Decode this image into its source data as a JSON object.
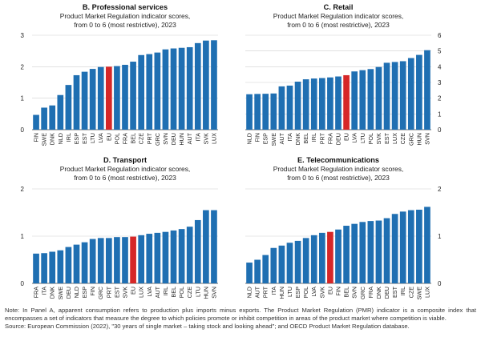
{
  "colors": {
    "bar": "#1F6FB2",
    "highlight": "#D62728",
    "grid": "#CFCFCF",
    "axis": "#444444"
  },
  "chart_data": [
    {
      "type": "bar",
      "panel": "B. Professional services",
      "subtitle1": "Product Market Regulation indicator scores,",
      "subtitle2": "from 0 to 6 (most restrictive), 2023",
      "axis_side": "left",
      "ylim": [
        0,
        3
      ],
      "yticks": [
        0,
        1,
        2,
        3
      ],
      "highlight": "EU",
      "categories": [
        "FIN",
        "SWE",
        "DNK",
        "NLD",
        "IRL",
        "ESP",
        "EST",
        "LTU",
        "LVA",
        "EU",
        "POL",
        "FRA",
        "BEL",
        "CZE",
        "PRT",
        "GRC",
        "SVN",
        "DEU",
        "HUN",
        "AUT",
        "ITA",
        "SVK",
        "LUX"
      ],
      "values": [
        0.47,
        0.7,
        0.77,
        1.1,
        1.42,
        1.73,
        1.84,
        1.93,
        1.99,
        2.0,
        2.02,
        2.06,
        2.16,
        2.37,
        2.4,
        2.45,
        2.55,
        2.58,
        2.6,
        2.62,
        2.75,
        2.83,
        2.84
      ]
    },
    {
      "type": "bar",
      "panel": "C. Retail",
      "subtitle1": "Product Market Regulation indicator scores,",
      "subtitle2": "from 0 to 6 (most restrictive), 2023",
      "axis_side": "right",
      "ylim": [
        0,
        6
      ],
      "yticks": [
        0,
        1,
        2,
        3,
        4,
        5,
        6
      ],
      "highlight": "EU",
      "categories": [
        "NLD",
        "FIN",
        "ESP",
        "SWE",
        "AUT",
        "ITA",
        "DNK",
        "BEL",
        "IRL",
        "PRT",
        "FRA",
        "DEU",
        "EU",
        "LVA",
        "LTU",
        "POL",
        "SVK",
        "EST",
        "LUX",
        "CZE",
        "GRC",
        "HUN",
        "SVN"
      ],
      "values": [
        2.25,
        2.27,
        2.28,
        2.3,
        2.75,
        2.8,
        3.05,
        3.2,
        3.25,
        3.28,
        3.32,
        3.38,
        3.46,
        3.7,
        3.78,
        3.85,
        3.98,
        4.25,
        4.3,
        4.35,
        4.55,
        4.75,
        5.05
      ]
    },
    {
      "type": "bar",
      "panel": "D. Transport",
      "subtitle1": "Product Market Regulation indicator scores,",
      "subtitle2": "from 0 to 6 (most restrictive), 2023",
      "axis_side": "left",
      "ylim": [
        0,
        2
      ],
      "yticks": [
        0,
        1,
        2
      ],
      "highlight": "EU",
      "categories": [
        "FRA",
        "ITA",
        "DNK",
        "SWE",
        "DEU",
        "NLD",
        "ESP",
        "FIN",
        "GRC",
        "PRT",
        "EST",
        "SVK",
        "EU",
        "LUX",
        "LVA",
        "AUT",
        "IRL",
        "BEL",
        "POL",
        "CZE",
        "LTU",
        "HUN",
        "SVN"
      ],
      "values": [
        0.63,
        0.64,
        0.67,
        0.7,
        0.77,
        0.82,
        0.87,
        0.94,
        0.96,
        0.96,
        0.98,
        0.98,
        0.99,
        1.02,
        1.05,
        1.07,
        1.09,
        1.12,
        1.15,
        1.2,
        1.34,
        1.55,
        1.55
      ]
    },
    {
      "type": "bar",
      "panel": "E. Telecommunications",
      "subtitle1": "Product Market Regulation indicator scores,",
      "subtitle2": "from 0 to 6 (most restrictive), 2023",
      "axis_side": "right",
      "ylim": [
        0,
        2
      ],
      "yticks": [
        0,
        1,
        2
      ],
      "highlight": "EU",
      "categories": [
        "NLD",
        "AUT",
        "PRT",
        "ITA",
        "HUN",
        "LTU",
        "ESP",
        "POL",
        "LVA",
        "SVK",
        "EU",
        "FIN",
        "BEL",
        "SVN",
        "GRC",
        "FRA",
        "DNK",
        "DEU",
        "EST",
        "IRL",
        "CZE",
        "SWE",
        "LUX"
      ],
      "values": [
        0.44,
        0.5,
        0.6,
        0.75,
        0.8,
        0.86,
        0.9,
        0.96,
        1.02,
        1.07,
        1.09,
        1.14,
        1.22,
        1.26,
        1.3,
        1.32,
        1.33,
        1.38,
        1.47,
        1.52,
        1.55,
        1.56,
        1.62
      ]
    }
  ],
  "note": {
    "line1": "Note: In Panel A, apparent consumption refers to production plus imports minus exports. The Product Market Regulation (PMR) indicator is a composite index that encompasses a set of indicators that measure the degree to which policies promote or inhibit competition in areas of the product market where competition is viable.",
    "line2": "Source: European Commission (2022), \"30 years of single market – taking stock and looking ahead\"; and OECD Product Market Regulation database."
  }
}
